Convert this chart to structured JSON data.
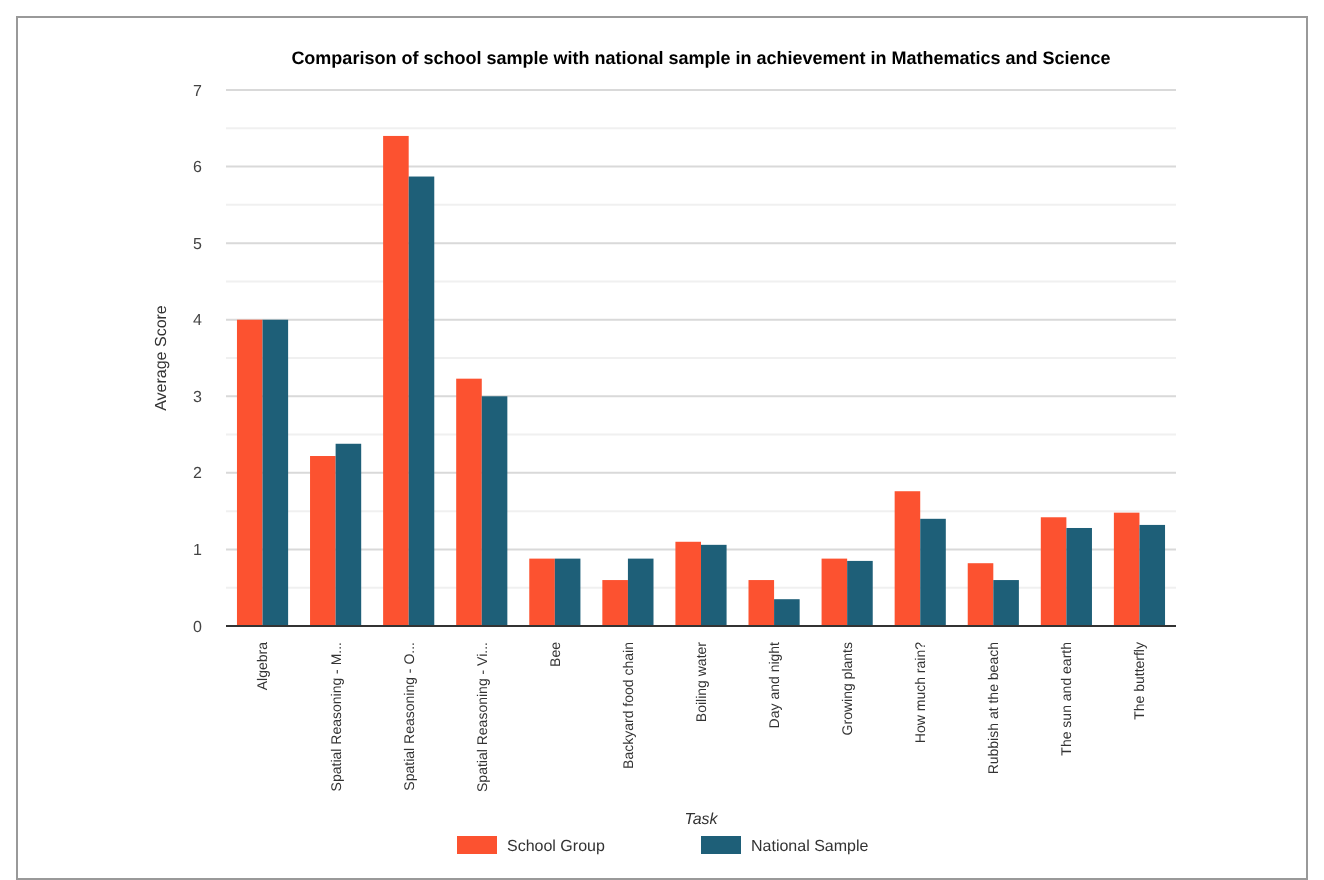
{
  "chart_data": {
    "type": "bar",
    "title": "Comparison of school sample with national sample in achievement in Mathematics and Science",
    "xlabel": "Task",
    "ylabel": "Average Score",
    "categories": [
      "Algebra",
      "Spatial Reasoning - M...",
      "Spatial Reasoning - O...",
      "Spatial Reasoning - Vi...",
      "Bee",
      "Backyard food chain",
      "Boiling water",
      "Day and night",
      "Growing plants",
      "How much rain?",
      "Rubbish at the beach",
      "The sun and earth",
      "The butterfly"
    ],
    "series": [
      {
        "name": "School Group",
        "color": "#fc5230",
        "values": [
          4.0,
          2.22,
          6.4,
          3.23,
          0.88,
          0.6,
          1.1,
          0.6,
          0.88,
          1.76,
          0.82,
          1.42,
          1.48
        ]
      },
      {
        "name": "National Sample",
        "color": "#1e5f78",
        "values": [
          4.0,
          2.38,
          5.87,
          3.0,
          0.88,
          0.88,
          1.06,
          0.35,
          0.85,
          1.4,
          0.6,
          1.28,
          1.32
        ]
      }
    ],
    "ylim": [
      0,
      7
    ],
    "yticks": [
      0,
      {
        "value": 0.5,
        "label": null
      },
      1,
      {
        "value": 1.5,
        "label": null
      },
      2,
      {
        "value": 2.5,
        "label": null
      },
      3,
      {
        "value": 3.5,
        "label": null
      },
      4,
      {
        "value": 4.5,
        "label": null
      },
      5,
      {
        "value": 5.5,
        "label": null
      },
      6,
      {
        "value": 6.5,
        "label": null
      },
      7
    ],
    "grid": "y",
    "legend": "bottom"
  }
}
